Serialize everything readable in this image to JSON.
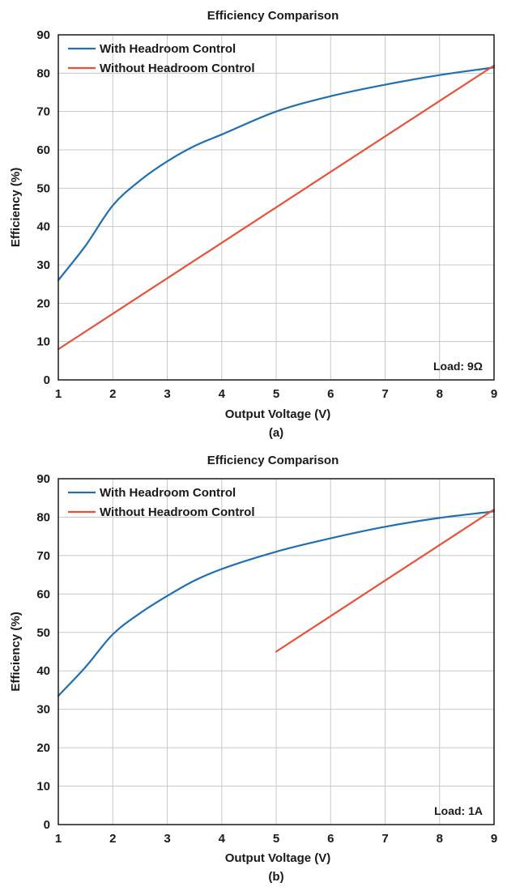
{
  "colors": {
    "with": "#1f6fb2",
    "without": "#e8503a"
  },
  "chart_data": [
    {
      "type": "line",
      "title": "Efficiency Comparison",
      "xlabel": "Output Voltage (V)",
      "ylabel": "Efficiency (%)",
      "subtitle": "(a)",
      "annotation": "Load: 9Ω",
      "xlim": [
        1,
        9
      ],
      "ylim": [
        0,
        90
      ],
      "xticks": [
        "1",
        "2",
        "3",
        "4",
        "5",
        "6",
        "7",
        "8",
        "9"
      ],
      "yticks": [
        "0",
        "10",
        "20",
        "30",
        "40",
        "50",
        "60",
        "70",
        "80",
        "90"
      ],
      "grid": true,
      "legend_position": "top-left",
      "series": [
        {
          "name": "With Headroom Control",
          "color_key": "with",
          "x": [
            1,
            1.5,
            2,
            2.5,
            3,
            3.5,
            4,
            5,
            6,
            7,
            8,
            9
          ],
          "y": [
            26,
            35,
            45.5,
            52,
            57,
            61,
            64,
            70,
            74,
            77,
            79.5,
            81.5
          ]
        },
        {
          "name": "Without Headroom Control",
          "color_key": "without",
          "x": [
            1,
            9
          ],
          "y": [
            8,
            82
          ]
        }
      ]
    },
    {
      "type": "line",
      "title": "Efficiency Comparison",
      "xlabel": "Output Voltage (V)",
      "ylabel": "Efficiency (%)",
      "subtitle": "(b)",
      "annotation": "Load: 1A",
      "xlim": [
        1,
        9
      ],
      "ylim": [
        0,
        90
      ],
      "xticks": [
        "1",
        "2",
        "3",
        "4",
        "5",
        "6",
        "7",
        "8",
        "9"
      ],
      "yticks": [
        "0",
        "10",
        "20",
        "30",
        "40",
        "50",
        "60",
        "70",
        "80",
        "90"
      ],
      "grid": true,
      "legend_position": "top-left",
      "series": [
        {
          "name": "With Headroom Control",
          "color_key": "with",
          "x": [
            1,
            1.5,
            2,
            2.5,
            3,
            3.5,
            4,
            5,
            6,
            7,
            8,
            9
          ],
          "y": [
            33.5,
            41,
            49.5,
            55,
            59.5,
            63.5,
            66.5,
            71,
            74.5,
            77.5,
            79.8,
            81.5
          ]
        },
        {
          "name": "Without Headroom Control",
          "color_key": "without",
          "x": [
            5,
            9
          ],
          "y": [
            45,
            82
          ]
        }
      ]
    }
  ]
}
